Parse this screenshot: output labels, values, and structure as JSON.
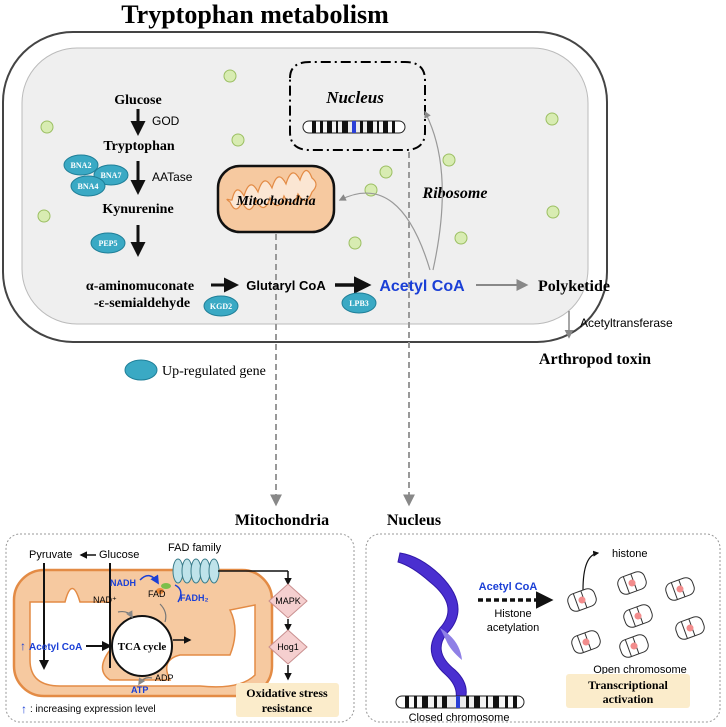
{
  "title": "Tryptophan metabolism",
  "colors": {
    "gene_fill": "#3aa9c4",
    "gene_edge": "#1f7f98",
    "vesicle_fill": "#d8ecb2",
    "vesicle_edge": "#9bbf62",
    "mito_fill": "#f6c9a0",
    "mito_edge": "#e38b45",
    "acetyl_blue": "#1a3fd6",
    "highlight_box": "#fbeccb",
    "chromosome_purple": "#4a2fd0",
    "mapk_fill": "#f5cfcf"
  },
  "pathway": {
    "glucose": "Glucose",
    "god": "GOD",
    "tryptophan": "Tryptophan",
    "aatase": "AATase",
    "kynurenine": "Kynurenine",
    "aminomuconate_line1": "α-aminomuconate",
    "aminomuconate_line2": "-ε-semialdehyde",
    "glutaryl_coa": "Glutaryl CoA",
    "acetyl_coa": "Acetyl CoA",
    "polyketide": "Polyketide",
    "acetyltransferase": "Acetyltransferase",
    "arthropod_toxin": "Arthropod toxin"
  },
  "genes": {
    "bna2": "BNA2",
    "bna7": "BNA7",
    "bna4": "BNA4",
    "pep5": "PEP5",
    "kgd2": "KGD2",
    "lpb3": "LPB3"
  },
  "organelles": {
    "nucleus": "Nucleus",
    "mitochondria": "Mitochondria",
    "ribosome": "Ribosome"
  },
  "legend": {
    "up_regulated": "Up-regulated gene"
  },
  "panel_titles": {
    "mitochondria": "Mitochondria",
    "nucleus": "Nucleus"
  },
  "mito_panel": {
    "pyruvate": "Pyruvate",
    "glucose": "Glucose",
    "fad_family": "FAD family",
    "nadh": "NADH",
    "nad": "NAD⁺",
    "fad": "FAD",
    "fadh2": "FADH₂",
    "acetyl_coa": "Acetyl CoA",
    "tca_cycle": "TCA cycle",
    "atp": "ATP",
    "adp": "ADP",
    "mapk": "MAPK",
    "hog1": "Hog1",
    "oxidative_line1": "Oxidative stress",
    "oxidative_line2": "resistance",
    "arrow_up": "↑",
    "increasing": ": increasing expression level"
  },
  "nucleus_panel": {
    "acetyl_coa": "Acetyl CoA",
    "histone_acetylation_line1": "Histone",
    "histone_acetylation_line2": "acetylation",
    "histone": "histone",
    "open_chromosome": "Open chromosome",
    "closed_chromosome": "Closed chromosome",
    "transcriptional_line1": "Transcriptional",
    "transcriptional_line2": "activation"
  }
}
